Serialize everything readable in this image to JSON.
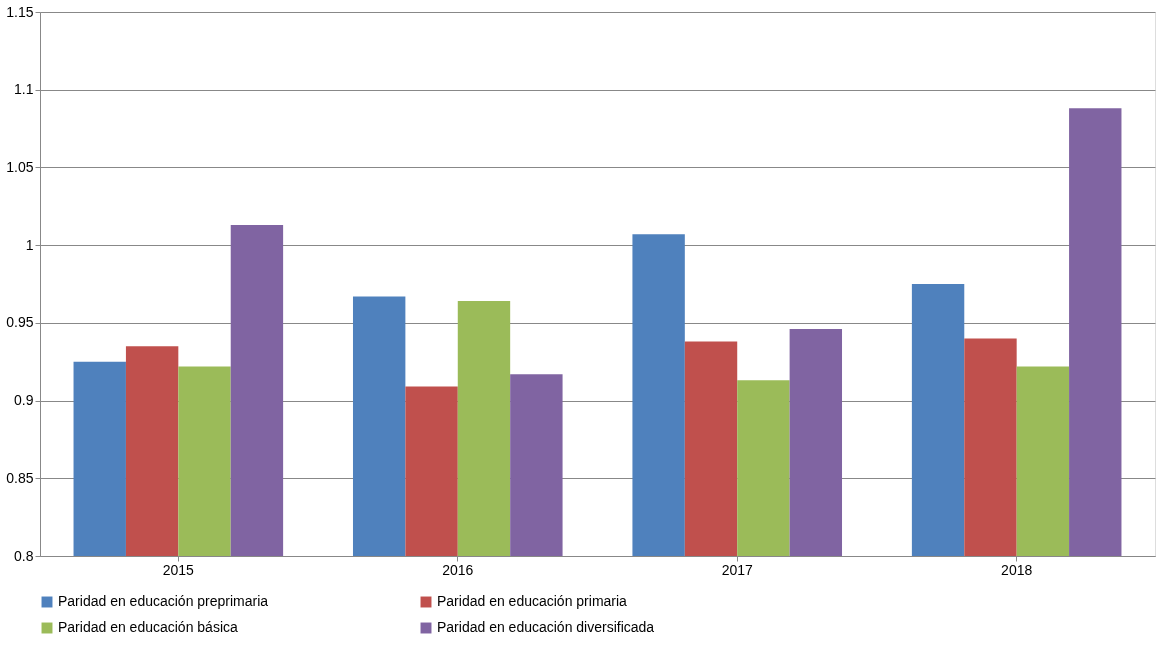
{
  "chart_data": {
    "type": "bar",
    "categories": [
      "2015",
      "2016",
      "2017",
      "2018"
    ],
    "series": [
      {
        "name": "Paridad en educación preprimaria",
        "color": "#4f81bd",
        "values": [
          0.925,
          0.967,
          1.007,
          0.975
        ]
      },
      {
        "name": "Paridad en educación primaria",
        "color": "#c0504d",
        "values": [
          0.935,
          0.909,
          0.938,
          0.94
        ]
      },
      {
        "name": "Paridad en educación básica",
        "color": "#9bbb59",
        "values": [
          0.922,
          0.964,
          0.913,
          0.922
        ]
      },
      {
        "name": "Paridad en educación diversificada",
        "color": "#8064a2",
        "values": [
          1.013,
          0.917,
          0.946,
          1.088
        ]
      }
    ],
    "ylim": [
      0.8,
      1.15
    ],
    "yticks": [
      0.8,
      0.85,
      0.9,
      0.95,
      1,
      1.05,
      1.1,
      1.15
    ],
    "grid": "y",
    "legend": "bottom"
  }
}
